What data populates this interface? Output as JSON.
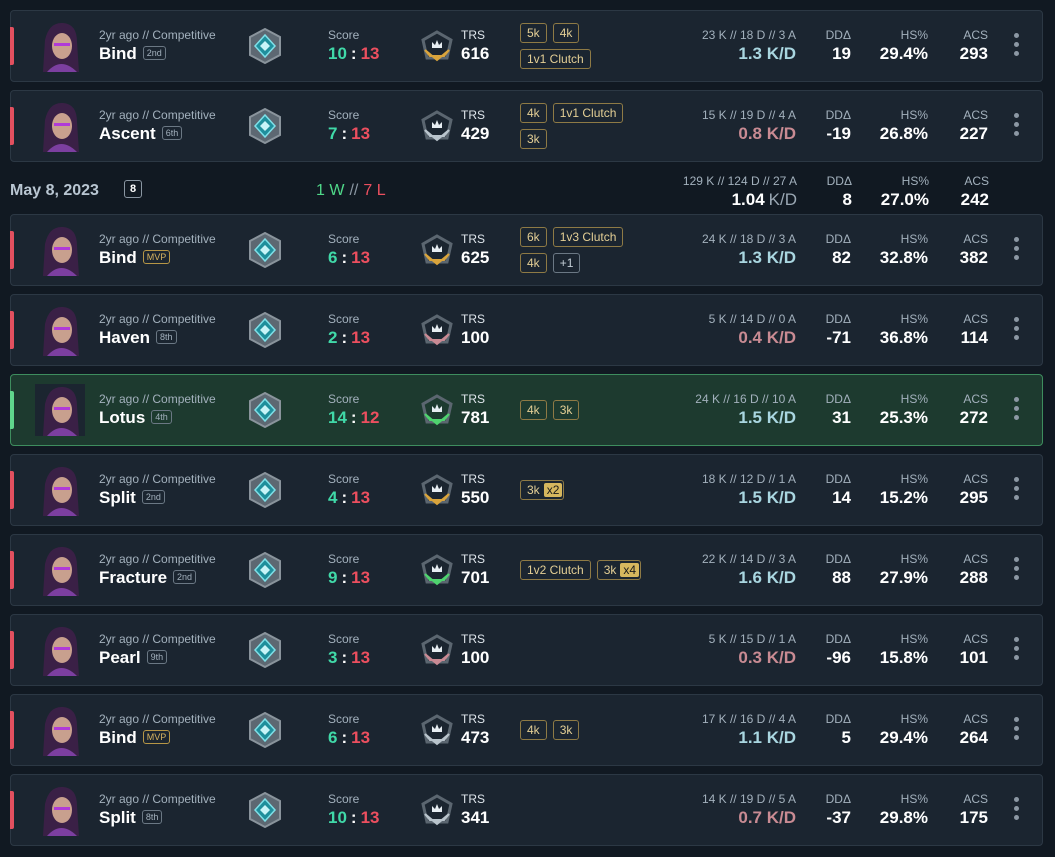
{
  "labels": {
    "mode": "2yr ago // Competitive",
    "score": "Score",
    "colon": ":",
    "trs": "TRS",
    "dd": "DDΔ",
    "hs": "HS%",
    "acs": "ACS",
    "sep": "//",
    "kd_unit": "K/D"
  },
  "groups": [
    {
      "matches": [
        {
          "map": "Bind",
          "place": "2nd",
          "us": 10,
          "them": 13,
          "trs": 616,
          "trs_color": "#d9a43c",
          "badges": [
            {
              "text": "5k"
            },
            {
              "text": "4k"
            },
            {
              "text": "1v1 Clutch"
            }
          ],
          "kda": "23 K // 18 D // 3 A",
          "kd": "1.3 K/D",
          "dd": 19,
          "hs": "29.4%",
          "acs": 293
        },
        {
          "map": "Ascent",
          "place": "6th",
          "us": 7,
          "them": 13,
          "trs": 429,
          "trs_color": "#b9c4cc",
          "badges": [
            {
              "text": "4k"
            },
            {
              "text": "1v1 Clutch"
            },
            {
              "text": "3k"
            }
          ],
          "kda": "15 K // 19 D // 4 A",
          "kd": "0.8 K/D",
          "dd": -19,
          "hs": "26.8%",
          "acs": 227
        }
      ]
    },
    {
      "day": {
        "date": "May 8, 2023",
        "count": 8,
        "wins": "1 W",
        "losses": "7 L",
        "kda": "129 K // 124 D // 27 A",
        "kd": "1.04",
        "dd": 8,
        "hs": "27.0%",
        "acs": 242
      },
      "matches": [
        {
          "map": "Bind",
          "place": "MVP",
          "us": 6,
          "them": 13,
          "trs": 625,
          "trs_color": "#d9a43c",
          "badges": [
            {
              "text": "6k"
            },
            {
              "text": "1v3 Clutch"
            },
            {
              "text": "4k"
            },
            {
              "text": "+1"
            }
          ],
          "kda": "24 K // 18 D // 3 A",
          "kd": "1.3 K/D",
          "dd": 82,
          "hs": "32.8%",
          "acs": 382
        },
        {
          "map": "Haven",
          "place": "8th",
          "us": 2,
          "them": 13,
          "trs": 100,
          "trs_color": "#c98a94",
          "badges": [],
          "kda": "5 K // 14 D // 0 A",
          "kd": "0.4 K/D",
          "dd": -71,
          "hs": "36.8%",
          "acs": 114
        },
        {
          "map": "Lotus",
          "place": "4th",
          "us": 14,
          "them": 12,
          "trs": 781,
          "trs_color": "#4fd36f",
          "badges": [
            {
              "text": "4k"
            },
            {
              "text": "3k"
            }
          ],
          "kda": "24 K // 16 D // 10 A",
          "kd": "1.5 K/D",
          "dd": 31,
          "hs": "25.3%",
          "acs": 272
        },
        {
          "map": "Split",
          "place": "2nd",
          "us": 4,
          "them": 13,
          "trs": 550,
          "trs_color": "#d9a43c",
          "badges": [
            {
              "text": "3k",
              "mult": "x2"
            }
          ],
          "kda": "18 K // 12 D // 1 A",
          "kd": "1.5 K/D",
          "dd": 14,
          "hs": "15.2%",
          "acs": 295
        },
        {
          "map": "Fracture",
          "place": "2nd",
          "us": 9,
          "them": 13,
          "trs": 701,
          "trs_color": "#4fd36f",
          "badges": [
            {
              "text": "1v2 Clutch"
            },
            {
              "text": "3k",
              "mult": "x4"
            }
          ],
          "kda": "22 K // 14 D // 3 A",
          "kd": "1.6 K/D",
          "dd": 88,
          "hs": "27.9%",
          "acs": 288
        },
        {
          "map": "Pearl",
          "place": "9th",
          "us": 3,
          "them": 13,
          "trs": 100,
          "trs_color": "#c98a94",
          "badges": [],
          "kda": "5 K // 15 D // 1 A",
          "kd": "0.3 K/D",
          "dd": -96,
          "hs": "15.8%",
          "acs": 101
        },
        {
          "map": "Bind",
          "place": "MVP",
          "us": 6,
          "them": 13,
          "trs": 473,
          "trs_color": "#b9c4cc",
          "badges": [
            {
              "text": "4k"
            },
            {
              "text": "3k"
            }
          ],
          "kda": "17 K // 16 D // 4 A",
          "kd": "1.1 K/D",
          "dd": 5,
          "hs": "29.4%",
          "acs": 264
        },
        {
          "map": "Split",
          "place": "8th",
          "us": 10,
          "them": 13,
          "trs": 341,
          "trs_color": "#b9c4cc",
          "badges": [],
          "kda": "14 K // 19 D // 5 A",
          "kd": "0.7 K/D",
          "dd": -37,
          "hs": "29.8%",
          "acs": 175
        }
      ]
    }
  ]
}
